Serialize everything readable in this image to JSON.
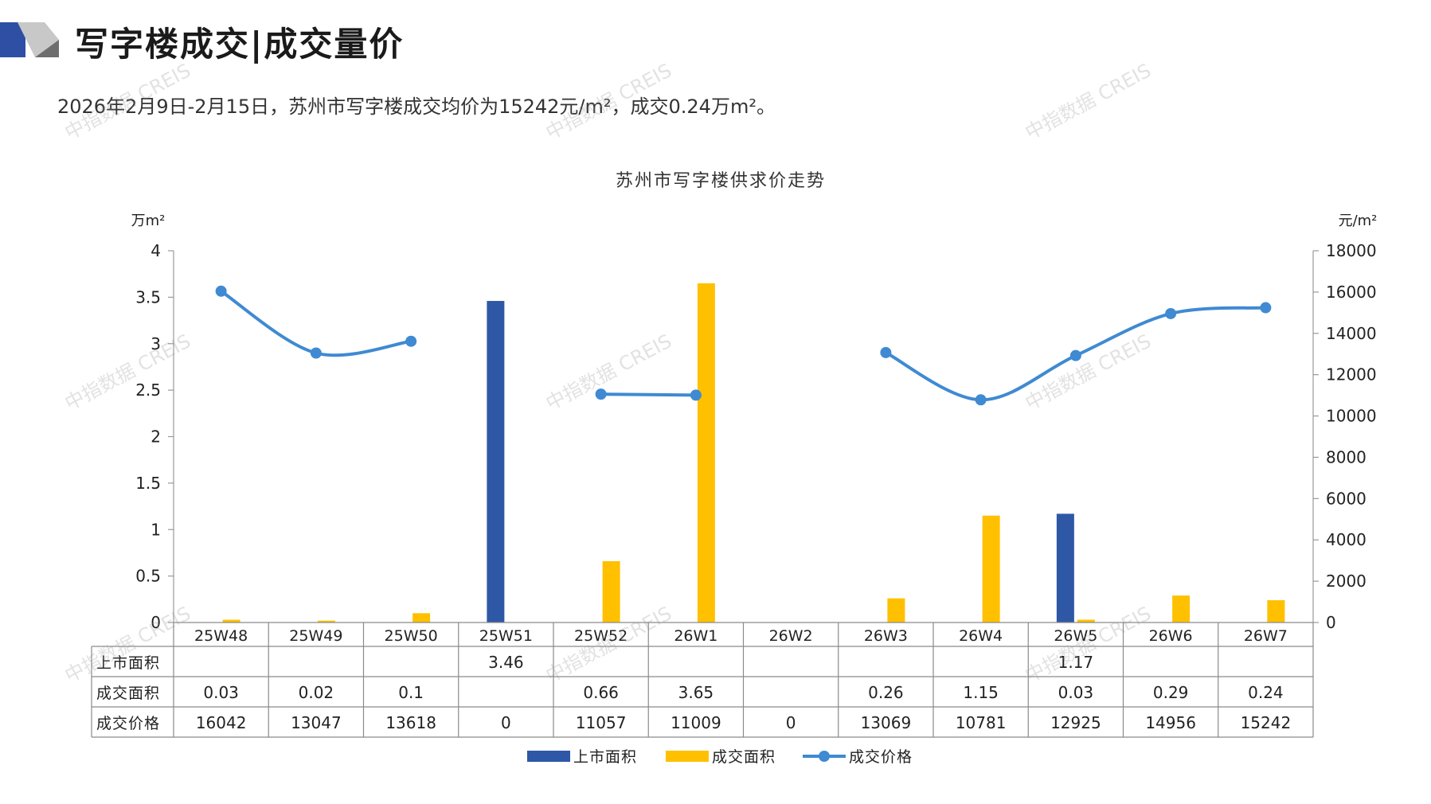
{
  "page": {
    "title": "写字楼成交|成交量价",
    "summary": "2026年2月9日-2月15日，苏州市写字楼成交均价为15242元/m²，成交0.24万m²。"
  },
  "watermarks": [
    "中指数据 CREIS",
    "中指数据 CREIS",
    "中指数据 CREIS",
    "中指数据 CREIS",
    "中指数据 CREIS",
    "中指数据 CREIS",
    "中指数据 CREIS",
    "中指数据 CREIS",
    "中指数据 CREIS"
  ],
  "colors": {
    "supply": "#2e57a6",
    "deal_area": "#ffc000",
    "deal_price": "#3f8ad2",
    "header_dark": "#2e4fa3",
    "header_gray": "#a6a6a6"
  },
  "chart_data": {
    "type": "bar",
    "title": "苏州市写字楼供求价走势",
    "y_left_unit": "万m²",
    "y_right_unit": "元/m²",
    "y_left_range": [
      0,
      4
    ],
    "y_left_ticks": [
      "0",
      "0.5",
      "1",
      "1.5",
      "2",
      "2.5",
      "3",
      "3.5",
      "4"
    ],
    "y_right_range": [
      0,
      18000
    ],
    "y_right_ticks": [
      "0",
      "2000",
      "4000",
      "6000",
      "8000",
      "10000",
      "12000",
      "14000",
      "16000",
      "18000"
    ],
    "categories": [
      "25W48",
      "25W49",
      "25W50",
      "25W51",
      "25W52",
      "26W1",
      "26W2",
      "26W3",
      "26W4",
      "26W5",
      "26W6",
      "26W7"
    ],
    "series": [
      {
        "name": "上市面积",
        "type": "bar",
        "axis": "left",
        "values": [
          null,
          null,
          null,
          3.46,
          null,
          null,
          null,
          null,
          null,
          1.17,
          null,
          null
        ],
        "labels": [
          "",
          "",
          "",
          "3.46",
          "",
          "",
          "",
          "",
          "",
          "1.17",
          "",
          ""
        ]
      },
      {
        "name": "成交面积",
        "type": "bar",
        "axis": "left",
        "values": [
          0.03,
          0.02,
          0.1,
          null,
          0.66,
          3.65,
          null,
          0.26,
          1.15,
          0.03,
          0.29,
          0.24
        ],
        "labels": [
          "0.03",
          "0.02",
          "0.1",
          "",
          "0.66",
          "3.65",
          "",
          "0.26",
          "1.15",
          "0.03",
          "0.29",
          "0.24"
        ]
      },
      {
        "name": "成交价格",
        "type": "line",
        "axis": "right",
        "values": [
          16042,
          13047,
          13618,
          0,
          11057,
          11009,
          0,
          13069,
          10781,
          12925,
          14956,
          15242
        ],
        "labels": [
          "16042",
          "13047",
          "13618",
          "0",
          "11057",
          "11009",
          "0",
          "13069",
          "10781",
          "12925",
          "14956",
          "15242"
        ]
      }
    ],
    "grid": false,
    "legend_position": "bottom",
    "data_table": true
  }
}
